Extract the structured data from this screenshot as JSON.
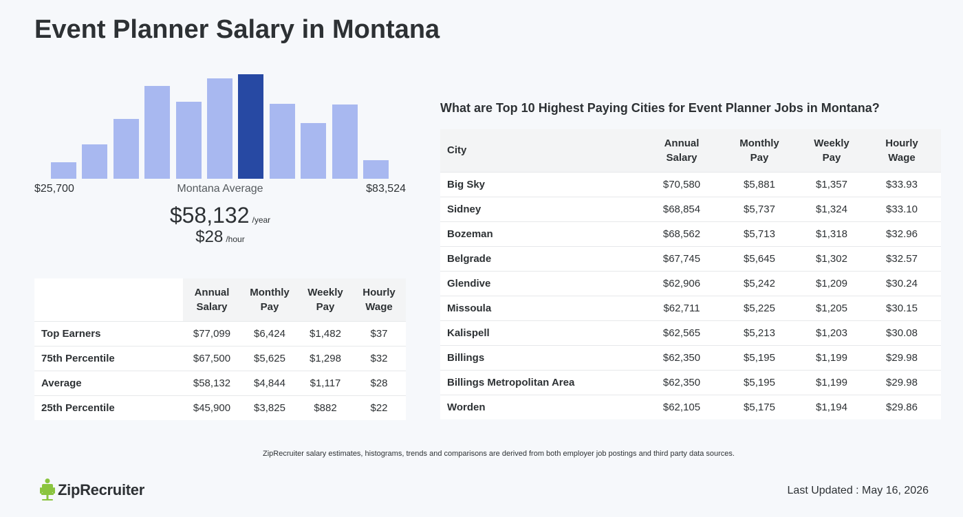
{
  "page": {
    "title": "Event Planner Salary in Montana"
  },
  "histogram": {
    "min_label": "$25,700",
    "max_label": "$83,524",
    "average_label": "Montana Average",
    "bar_levels": [
      0.16,
      0.33,
      0.57,
      0.89,
      0.74,
      0.96,
      1.0,
      0.72,
      0.53,
      0.71,
      0.18
    ],
    "highlight_index": 6,
    "colors": {
      "bar": "#a8b8f0",
      "highlight": "#2749a3"
    }
  },
  "summary": {
    "annual": "$58,132",
    "annual_unit": "/year",
    "hourly": "$28",
    "hourly_unit": "/hour"
  },
  "left_table": {
    "headers": [
      "Annual\nSalary",
      "Monthly\nPay",
      "Weekly\nPay",
      "Hourly\nWage"
    ],
    "rows": [
      {
        "label": "Top Earners",
        "values": [
          "$77,099",
          "$6,424",
          "$1,482",
          "$37"
        ]
      },
      {
        "label": "75th Percentile",
        "values": [
          "$67,500",
          "$5,625",
          "$1,298",
          "$32"
        ]
      },
      {
        "label": "Average",
        "values": [
          "$58,132",
          "$4,844",
          "$1,117",
          "$28"
        ]
      },
      {
        "label": "25th Percentile",
        "values": [
          "$45,900",
          "$3,825",
          "$882",
          "$22"
        ]
      }
    ]
  },
  "right_table": {
    "title": "What are Top 10 Highest Paying Cities for Event Planner Jobs in Montana?",
    "headers": [
      "City",
      "Annual\nSalary",
      "Monthly\nPay",
      "Weekly\nPay",
      "Hourly\nWage"
    ],
    "rows": [
      {
        "city": "Big Sky",
        "values": [
          "$70,580",
          "$5,881",
          "$1,357",
          "$33.93"
        ]
      },
      {
        "city": "Sidney",
        "values": [
          "$68,854",
          "$5,737",
          "$1,324",
          "$33.10"
        ]
      },
      {
        "city": "Bozeman",
        "values": [
          "$68,562",
          "$5,713",
          "$1,318",
          "$32.96"
        ]
      },
      {
        "city": "Belgrade",
        "values": [
          "$67,745",
          "$5,645",
          "$1,302",
          "$32.57"
        ]
      },
      {
        "city": "Glendive",
        "values": [
          "$62,906",
          "$5,242",
          "$1,209",
          "$30.24"
        ]
      },
      {
        "city": "Missoula",
        "values": [
          "$62,711",
          "$5,225",
          "$1,205",
          "$30.15"
        ]
      },
      {
        "city": "Kalispell",
        "values": [
          "$62,565",
          "$5,213",
          "$1,203",
          "$30.08"
        ]
      },
      {
        "city": "Billings",
        "values": [
          "$62,350",
          "$5,195",
          "$1,199",
          "$29.98"
        ]
      },
      {
        "city": "Billings Metropolitan Area",
        "values": [
          "$62,350",
          "$5,195",
          "$1,199",
          "$29.98"
        ]
      },
      {
        "city": "Worden",
        "values": [
          "$62,105",
          "$5,175",
          "$1,194",
          "$29.86"
        ]
      }
    ]
  },
  "footer": {
    "footnote": "ZipRecruiter salary estimates, histograms, trends and comparisons are derived from both employer job postings and third party data sources.",
    "logo_text": "ZipRecruiter",
    "logo_icon": "chair-icon",
    "logo_color": "#8ac43f",
    "last_updated": "Last Updated : May 16, 2026"
  }
}
